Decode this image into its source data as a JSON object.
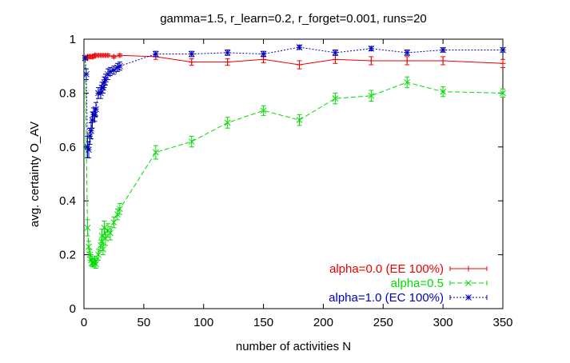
{
  "chart_data": {
    "type": "line",
    "title": "gamma=1.5, r_learn=0.2, r_forget=0.001, runs=20",
    "xlabel": "number of activities N",
    "ylabel": "avg. certainty O_AV",
    "xlim": [
      0,
      350
    ],
    "ylim": [
      0,
      1
    ],
    "xticks": [
      "0",
      "50",
      "100",
      "150",
      "200",
      "250",
      "300",
      "350"
    ],
    "yticks": [
      "0",
      "0.2",
      "0.4",
      "0.6",
      "0.8",
      "1"
    ],
    "grid": false,
    "legend_position": "bottom-right",
    "series": [
      {
        "name": "alpha=0.0 (EE 100%)",
        "color": "#ee0000",
        "marker": "plus",
        "dash": "solid",
        "points": [
          {
            "x": 1,
            "y": 0.93,
            "err": 0.005
          },
          {
            "x": 2,
            "y": 0.93,
            "err": 0.005
          },
          {
            "x": 3,
            "y": 0.935,
            "err": 0.005
          },
          {
            "x": 4,
            "y": 0.935,
            "err": 0.005
          },
          {
            "x": 5,
            "y": 0.935,
            "err": 0.005
          },
          {
            "x": 6,
            "y": 0.935,
            "err": 0.005
          },
          {
            "x": 7,
            "y": 0.935,
            "err": 0.005
          },
          {
            "x": 8,
            "y": 0.935,
            "err": 0.005
          },
          {
            "x": 9,
            "y": 0.94,
            "err": 0.005
          },
          {
            "x": 10,
            "y": 0.94,
            "err": 0.005
          },
          {
            "x": 12,
            "y": 0.94,
            "err": 0.005
          },
          {
            "x": 14,
            "y": 0.94,
            "err": 0.005
          },
          {
            "x": 16,
            "y": 0.94,
            "err": 0.005
          },
          {
            "x": 18,
            "y": 0.94,
            "err": 0.005
          },
          {
            "x": 20,
            "y": 0.94,
            "err": 0.005
          },
          {
            "x": 25,
            "y": 0.935,
            "err": 0.005
          },
          {
            "x": 30,
            "y": 0.94,
            "err": 0.005
          },
          {
            "x": 60,
            "y": 0.935,
            "err": 0.01
          },
          {
            "x": 90,
            "y": 0.915,
            "err": 0.012
          },
          {
            "x": 120,
            "y": 0.915,
            "err": 0.012
          },
          {
            "x": 150,
            "y": 0.925,
            "err": 0.012
          },
          {
            "x": 180,
            "y": 0.905,
            "err": 0.015
          },
          {
            "x": 210,
            "y": 0.925,
            "err": 0.015
          },
          {
            "x": 240,
            "y": 0.92,
            "err": 0.015
          },
          {
            "x": 270,
            "y": 0.92,
            "err": 0.015
          },
          {
            "x": 300,
            "y": 0.92,
            "err": 0.015
          },
          {
            "x": 350,
            "y": 0.91,
            "err": 0.015
          }
        ]
      },
      {
        "name": "alpha=0.5",
        "color": "#00dd00",
        "marker": "cross",
        "dash": "6,3",
        "points": [
          {
            "x": 1,
            "y": 0.93,
            "err": 0.0
          },
          {
            "x": 2,
            "y": 0.6,
            "err": 0.04
          },
          {
            "x": 3,
            "y": 0.3,
            "err": 0.03
          },
          {
            "x": 4,
            "y": 0.23,
            "err": 0.02
          },
          {
            "x": 5,
            "y": 0.2,
            "err": 0.02
          },
          {
            "x": 6,
            "y": 0.18,
            "err": 0.02
          },
          {
            "x": 7,
            "y": 0.17,
            "err": 0.015
          },
          {
            "x": 8,
            "y": 0.17,
            "err": 0.015
          },
          {
            "x": 9,
            "y": 0.18,
            "err": 0.015
          },
          {
            "x": 10,
            "y": 0.165,
            "err": 0.015
          },
          {
            "x": 12,
            "y": 0.2,
            "err": 0.02
          },
          {
            "x": 14,
            "y": 0.235,
            "err": 0.02
          },
          {
            "x": 15,
            "y": 0.27,
            "err": 0.025
          },
          {
            "x": 16,
            "y": 0.22,
            "err": 0.02
          },
          {
            "x": 17,
            "y": 0.3,
            "err": 0.025
          },
          {
            "x": 18,
            "y": 0.26,
            "err": 0.025
          },
          {
            "x": 20,
            "y": 0.29,
            "err": 0.025
          },
          {
            "x": 22,
            "y": 0.28,
            "err": 0.025
          },
          {
            "x": 25,
            "y": 0.32,
            "err": 0.02
          },
          {
            "x": 28,
            "y": 0.35,
            "err": 0.02
          },
          {
            "x": 30,
            "y": 0.37,
            "err": 0.02
          },
          {
            "x": 60,
            "y": 0.58,
            "err": 0.025
          },
          {
            "x": 90,
            "y": 0.62,
            "err": 0.02
          },
          {
            "x": 120,
            "y": 0.69,
            "err": 0.02
          },
          {
            "x": 150,
            "y": 0.735,
            "err": 0.018
          },
          {
            "x": 180,
            "y": 0.7,
            "err": 0.02
          },
          {
            "x": 210,
            "y": 0.78,
            "err": 0.02
          },
          {
            "x": 240,
            "y": 0.79,
            "err": 0.02
          },
          {
            "x": 270,
            "y": 0.84,
            "err": 0.02
          },
          {
            "x": 300,
            "y": 0.805,
            "err": 0.018
          },
          {
            "x": 350,
            "y": 0.8,
            "err": 0.015
          }
        ]
      },
      {
        "name": "alpha=1.0 (EC 100%)",
        "color": "#0000bb",
        "marker": "star",
        "dash": "2,2",
        "points": [
          {
            "x": 1,
            "y": 0.93,
            "err": 0.0
          },
          {
            "x": 2,
            "y": 0.87,
            "err": 0.02
          },
          {
            "x": 3,
            "y": 0.6,
            "err": 0.04
          },
          {
            "x": 4,
            "y": 0.59,
            "err": 0.03
          },
          {
            "x": 5,
            "y": 0.64,
            "err": 0.03
          },
          {
            "x": 6,
            "y": 0.66,
            "err": 0.03
          },
          {
            "x": 7,
            "y": 0.7,
            "err": 0.03
          },
          {
            "x": 8,
            "y": 0.72,
            "err": 0.025
          },
          {
            "x": 9,
            "y": 0.72,
            "err": 0.025
          },
          {
            "x": 10,
            "y": 0.74,
            "err": 0.025
          },
          {
            "x": 12,
            "y": 0.8,
            "err": 0.02
          },
          {
            "x": 14,
            "y": 0.8,
            "err": 0.02
          },
          {
            "x": 15,
            "y": 0.82,
            "err": 0.02
          },
          {
            "x": 16,
            "y": 0.82,
            "err": 0.02
          },
          {
            "x": 17,
            "y": 0.84,
            "err": 0.02
          },
          {
            "x": 18,
            "y": 0.85,
            "err": 0.02
          },
          {
            "x": 20,
            "y": 0.87,
            "err": 0.02
          },
          {
            "x": 22,
            "y": 0.88,
            "err": 0.015
          },
          {
            "x": 25,
            "y": 0.885,
            "err": 0.015
          },
          {
            "x": 28,
            "y": 0.895,
            "err": 0.015
          },
          {
            "x": 30,
            "y": 0.9,
            "err": 0.015
          },
          {
            "x": 60,
            "y": 0.945,
            "err": 0.01
          },
          {
            "x": 90,
            "y": 0.945,
            "err": 0.01
          },
          {
            "x": 120,
            "y": 0.95,
            "err": 0.01
          },
          {
            "x": 150,
            "y": 0.945,
            "err": 0.01
          },
          {
            "x": 180,
            "y": 0.97,
            "err": 0.008
          },
          {
            "x": 210,
            "y": 0.95,
            "err": 0.01
          },
          {
            "x": 240,
            "y": 0.965,
            "err": 0.008
          },
          {
            "x": 270,
            "y": 0.95,
            "err": 0.01
          },
          {
            "x": 300,
            "y": 0.96,
            "err": 0.008
          },
          {
            "x": 350,
            "y": 0.96,
            "err": 0.008
          }
        ]
      }
    ]
  }
}
